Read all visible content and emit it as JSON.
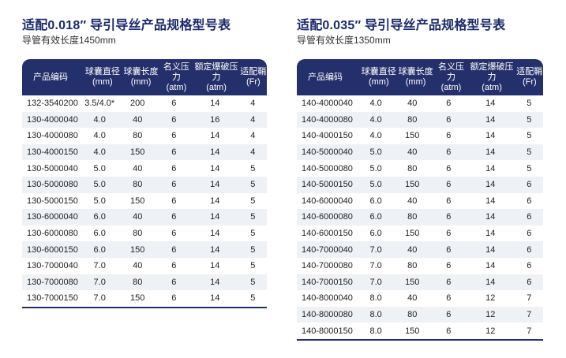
{
  "tables": [
    {
      "title": "适配0.018″ 导引导丝产品规格型号表",
      "subtitle": "导管有效长度1450mm",
      "headers": [
        "产品编码",
        "球囊直径\n(mm)",
        "球囊长度\n(mm)",
        "名义压力\n(atm)",
        "额定爆破压力\n(atm)",
        "适配鞘\n(Fr)"
      ],
      "rows": [
        [
          "132-3540200",
          "3.5/4.0*",
          "200",
          "6",
          "14",
          "4"
        ],
        [
          "130-4000040",
          "4.0",
          "40",
          "6",
          "16",
          "4"
        ],
        [
          "130-4000080",
          "4.0",
          "80",
          "6",
          "14",
          "4"
        ],
        [
          "130-4000150",
          "4.0",
          "150",
          "6",
          "14",
          "4"
        ],
        [
          "130-5000040",
          "5.0",
          "40",
          "6",
          "14",
          "5"
        ],
        [
          "130-5000080",
          "5.0",
          "80",
          "6",
          "14",
          "5"
        ],
        [
          "130-5000150",
          "5.0",
          "150",
          "6",
          "14",
          "5"
        ],
        [
          "130-6000040",
          "6.0",
          "40",
          "6",
          "14",
          "5"
        ],
        [
          "130-6000080",
          "6.0",
          "80",
          "6",
          "14",
          "5"
        ],
        [
          "130-6000150",
          "6.0",
          "150",
          "6",
          "14",
          "5"
        ],
        [
          "130-7000040",
          "7.0",
          "40",
          "6",
          "14",
          "5"
        ],
        [
          "130-7000080",
          "7.0",
          "80",
          "6",
          "14",
          "5"
        ],
        [
          "130-7000150",
          "7.0",
          "150",
          "6",
          "14",
          "5"
        ]
      ]
    },
    {
      "title": "适配0.035″ 导引导丝产品规格型号表",
      "subtitle": "导管有效长度1350mm",
      "headers": [
        "产品编码",
        "球囊直径\n(mm)",
        "球囊长度\n(mm)",
        "名义压力\n(atm)",
        "额定爆破压力\n(atm)",
        "适配鞘\n(Fr)"
      ],
      "rows": [
        [
          "140-4000040",
          "4.0",
          "40",
          "6",
          "14",
          "5"
        ],
        [
          "140-4000080",
          "4.0",
          "80",
          "6",
          "14",
          "5"
        ],
        [
          "140-4000150",
          "4.0",
          "150",
          "6",
          "14",
          "5"
        ],
        [
          "140-5000040",
          "5.0",
          "40",
          "6",
          "14",
          "5"
        ],
        [
          "140-5000080",
          "5.0",
          "80",
          "6",
          "14",
          "5"
        ],
        [
          "140-5000150",
          "5.0",
          "150",
          "6",
          "14",
          "6"
        ],
        [
          "140-6000040",
          "6.0",
          "40",
          "6",
          "14",
          "6"
        ],
        [
          "140-6000080",
          "6.0",
          "80",
          "6",
          "14",
          "6"
        ],
        [
          "140-6000150",
          "6.0",
          "150",
          "6",
          "14",
          "6"
        ],
        [
          "140-7000040",
          "7.0",
          "40",
          "6",
          "14",
          "6"
        ],
        [
          "140-7000080",
          "7.0",
          "80",
          "6",
          "14",
          "6"
        ],
        [
          "140-7000150",
          "7.0",
          "150",
          "6",
          "14",
          "6"
        ],
        [
          "140-8000040",
          "8.0",
          "40",
          "6",
          "12",
          "7"
        ],
        [
          "140-8000080",
          "8.0",
          "80",
          "6",
          "12",
          "7"
        ],
        [
          "140-8000150",
          "8.0",
          "150",
          "6",
          "12",
          "7"
        ]
      ]
    }
  ]
}
